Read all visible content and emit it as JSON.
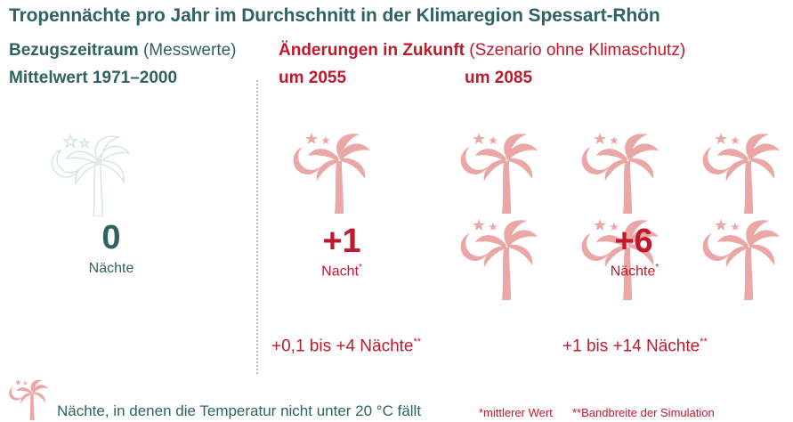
{
  "title": "Tropennächte pro Jahr im Durchschnitt in der Klimaregion Spessart-Rhön",
  "reference": {
    "label_bold": "Bezugszeitraum",
    "label_normal": "(Messwerte)",
    "period": "Mittelwert 1971–2000"
  },
  "future": {
    "label_bold": "Änderungen in Zukunft",
    "label_normal": "(Szenario ohne Klimaschutz)"
  },
  "chart_data": {
    "type": "pictogram",
    "title": "Tropennächte pro Jahr im Durchschnitt in der Klimaregion Spessart-Rhön",
    "unit_icon_meaning": "Nächte, in denen die Temperatur nicht unter 20 °C fällt",
    "groups": [
      {
        "period": "",
        "value": 0,
        "value_label": "0",
        "unit": "Nächte",
        "unit_mark": "",
        "range": ""
      },
      {
        "period": "um 2055",
        "value": 1,
        "value_label": "+1",
        "unit": "Nacht",
        "unit_mark": "*",
        "range": "+0,1 bis +4 Nächte",
        "range_mark": "**"
      },
      {
        "period": "um 2085",
        "value": 6,
        "value_label": "+6",
        "unit": "Nächte",
        "unit_mark": "*",
        "range": "+1 bis +14 Nächte",
        "range_mark": "**"
      }
    ]
  },
  "colors": {
    "teal": "#2f6263",
    "red": "#c0192c",
    "icon_pink": "#eba6a6",
    "icon_outline": "#d8e8e2"
  },
  "legend": {
    "text": "Nächte, in denen die Temperatur nicht unter 20 °C fällt",
    "icon": "palm-moon-icon"
  },
  "footnotes": {
    "mean": "*mittlerer Wert",
    "band": "**Bandbreite der Simulation"
  }
}
